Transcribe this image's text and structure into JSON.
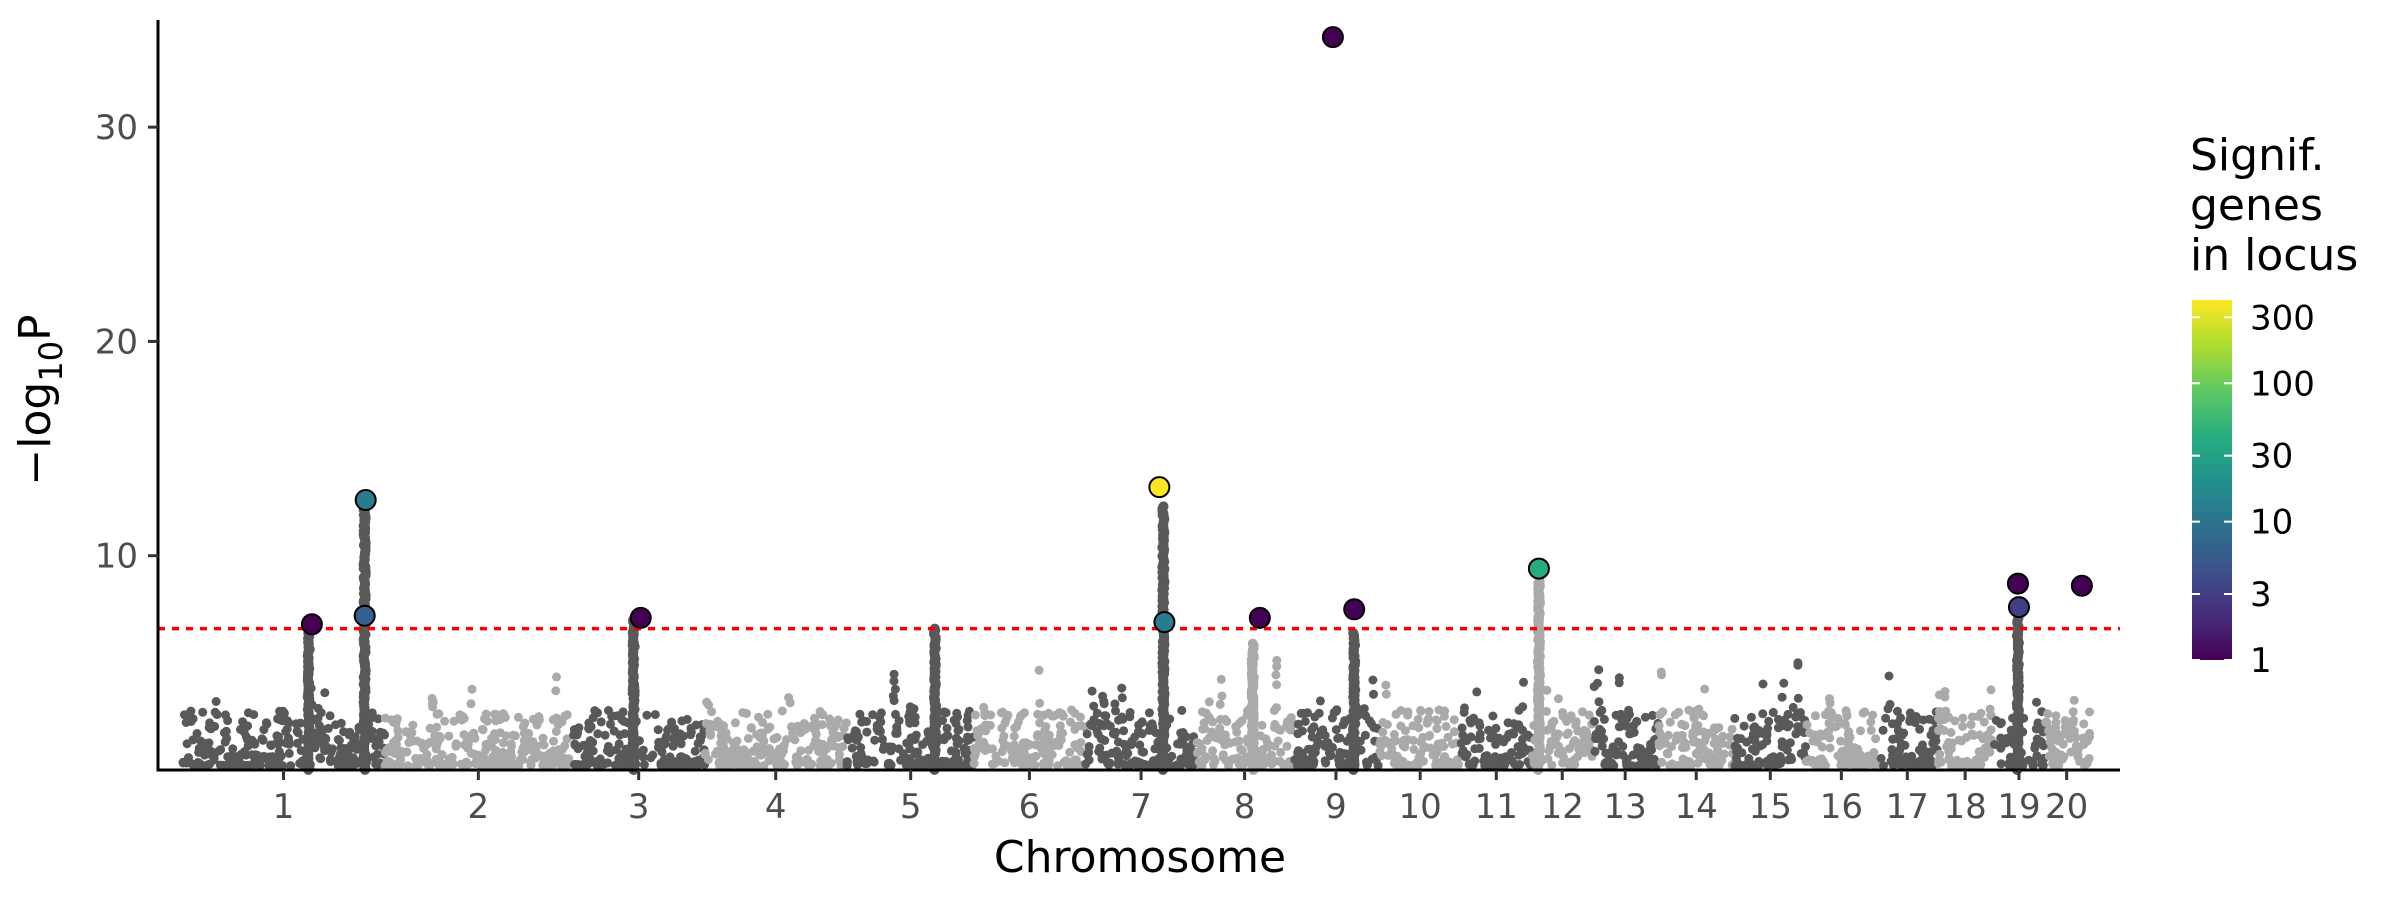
{
  "chart_data": {
    "type": "scatter",
    "subtype": "manhattan",
    "xlabel": "Chromosome",
    "ylabel_parts": [
      "−log",
      "10",
      "P"
    ],
    "ylim": [
      0,
      35
    ],
    "yticks": [
      10,
      20,
      30
    ],
    "threshold": {
      "value": 6.6,
      "color": "#ff0000",
      "style": "dotted"
    },
    "chromosomes": [
      {
        "label": "1",
        "start": 0,
        "end": 200,
        "shade": "dark"
      },
      {
        "label": "2",
        "start": 200,
        "end": 385,
        "shade": "light"
      },
      {
        "label": "3",
        "start": 385,
        "end": 515,
        "shade": "dark"
      },
      {
        "label": "4",
        "start": 515,
        "end": 655,
        "shade": "light"
      },
      {
        "label": "5",
        "start": 655,
        "end": 780,
        "shade": "dark"
      },
      {
        "label": "6",
        "start": 780,
        "end": 890,
        "shade": "light"
      },
      {
        "label": "7",
        "start": 890,
        "end": 1000,
        "shade": "dark"
      },
      {
        "label": "8",
        "start": 1000,
        "end": 1095,
        "shade": "light"
      },
      {
        "label": "9",
        "start": 1095,
        "end": 1180,
        "shade": "dark"
      },
      {
        "label": "10",
        "start": 1180,
        "end": 1260,
        "shade": "light"
      },
      {
        "label": "11",
        "start": 1260,
        "end": 1330,
        "shade": "dark"
      },
      {
        "label": "12",
        "start": 1330,
        "end": 1390,
        "shade": "light"
      },
      {
        "label": "13",
        "start": 1390,
        "end": 1455,
        "shade": "dark"
      },
      {
        "label": "14",
        "start": 1455,
        "end": 1530,
        "shade": "light"
      },
      {
        "label": "15",
        "start": 1530,
        "end": 1600,
        "shade": "dark"
      },
      {
        "label": "16",
        "start": 1600,
        "end": 1670,
        "shade": "light"
      },
      {
        "label": "17",
        "start": 1670,
        "end": 1730,
        "shade": "dark"
      },
      {
        "label": "18",
        "start": 1730,
        "end": 1785,
        "shade": "light"
      },
      {
        "label": "19",
        "start": 1785,
        "end": 1835,
        "shade": "dark"
      },
      {
        "label": "20",
        "start": 1835,
        "end": 1880,
        "shade": "light"
      }
    ],
    "chromosome_tick_positions": [
      100,
      292,
      450,
      585,
      718,
      835,
      945,
      1047,
      1137,
      1220,
      1295,
      1360,
      1422,
      1492,
      1565,
      1635,
      1700,
      1757,
      1810,
      1857
    ],
    "peaks": [
      {
        "x": 125,
        "y": 6.8
      },
      {
        "x": 180,
        "y": 12.4
      },
      {
        "x": 445,
        "y": 7.0
      },
      {
        "x": 742,
        "y": 6.6
      },
      {
        "x": 967,
        "y": 12.3
      },
      {
        "x": 1055,
        "y": 5.9
      },
      {
        "x": 1155,
        "y": 6.4
      },
      {
        "x": 1337,
        "y": 8.8
      },
      {
        "x": 1809,
        "y": 7.1
      }
    ],
    "lead_snps": [
      {
        "x": 128,
        "y": 6.8,
        "genes": 1
      },
      {
        "x": 181,
        "y": 12.6,
        "genes": 12
      },
      {
        "x": 180,
        "y": 7.2,
        "genes": 6
      },
      {
        "x": 452,
        "y": 7.1,
        "genes": 1
      },
      {
        "x": 963,
        "y": 13.2,
        "genes": 400
      },
      {
        "x": 968,
        "y": 6.9,
        "genes": 12
      },
      {
        "x": 1062,
        "y": 7.1,
        "genes": 1
      },
      {
        "x": 1134,
        "y": 34.2,
        "genes": 1
      },
      {
        "x": 1155,
        "y": 7.5,
        "genes": 1
      },
      {
        "x": 1337,
        "y": 9.4,
        "genes": 40
      },
      {
        "x": 1809,
        "y": 8.7,
        "genes": 1
      },
      {
        "x": 1810,
        "y": 7.6,
        "genes": 3
      },
      {
        "x": 1872,
        "y": 8.6,
        "genes": 1
      }
    ],
    "legend": {
      "title_lines": [
        "Signif.",
        "genes",
        "in locus"
      ],
      "scale": "log",
      "range": [
        1,
        400
      ],
      "tick_values": [
        1,
        3,
        10,
        30,
        100,
        300
      ],
      "tick_labels": [
        "1",
        "3",
        "10",
        "30",
        "100",
        "300"
      ],
      "colormap": "viridis",
      "placement": "right"
    },
    "colors": {
      "dark_points": "#595959",
      "light_points": "#aaaaaa",
      "axis": "#000000"
    }
  }
}
